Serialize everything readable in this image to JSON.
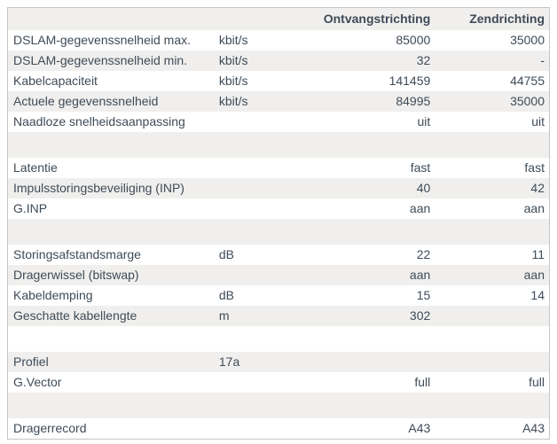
{
  "app": {
    "description": "DSL line information table",
    "colors": {
      "stripe_gray": "#f0efed",
      "row_white": "#ffffff",
      "text": "#3f4b57",
      "border": "#c8c6c4",
      "page_background": "#ffffff"
    }
  },
  "table": {
    "headers": {
      "parameter": "",
      "unit": "",
      "receive": "Ontvangstrichting",
      "send": "Zendrichting"
    },
    "rows": [
      {
        "type": "data",
        "label": "DSLAM-gegevenssnelheid max.",
        "unit": "kbit/s",
        "receive": "85000",
        "send": "35000"
      },
      {
        "type": "data",
        "label": "DSLAM-gegevenssnelheid min.",
        "unit": "kbit/s",
        "receive": "32",
        "send": "-"
      },
      {
        "type": "data",
        "label": "Kabelcapaciteit",
        "unit": "kbit/s",
        "receive": "141459",
        "send": "44755"
      },
      {
        "type": "data",
        "label": "Actuele gegevenssnelheid",
        "unit": "kbit/s",
        "receive": "84995",
        "send": "35000"
      },
      {
        "type": "data",
        "label": "Naadloze snelheidsaanpassing",
        "unit": "",
        "receive": "uit",
        "send": "uit"
      },
      {
        "type": "spacer"
      },
      {
        "type": "data",
        "label": "Latentie",
        "unit": "",
        "receive": "fast",
        "send": "fast"
      },
      {
        "type": "data",
        "label": "Impulsstoringsbeveiliging (INP)",
        "unit": "",
        "receive": "40",
        "send": "42"
      },
      {
        "type": "data",
        "label": "G.INP",
        "unit": "",
        "receive": "aan",
        "send": "aan"
      },
      {
        "type": "spacer"
      },
      {
        "type": "data",
        "label": "Storingsafstandsmarge",
        "unit": "dB",
        "receive": "22",
        "send": "11"
      },
      {
        "type": "data",
        "label": "Dragerwissel (bitswap)",
        "unit": "",
        "receive": "aan",
        "send": "aan"
      },
      {
        "type": "data",
        "label": "Kabeldemping",
        "unit": "dB",
        "receive": "15",
        "send": "14"
      },
      {
        "type": "data",
        "label": "Geschatte kabellengte",
        "unit": "m",
        "receive": "302",
        "send": ""
      },
      {
        "type": "spacer"
      },
      {
        "type": "data",
        "label": "Profiel",
        "unit": "17a",
        "receive": "",
        "send": ""
      },
      {
        "type": "data",
        "label": "G.Vector",
        "unit": "",
        "receive": "full",
        "send": "full"
      },
      {
        "type": "spacer"
      },
      {
        "type": "data",
        "label": "Dragerrecord",
        "unit": "",
        "receive": "A43",
        "send": "A43"
      }
    ]
  }
}
